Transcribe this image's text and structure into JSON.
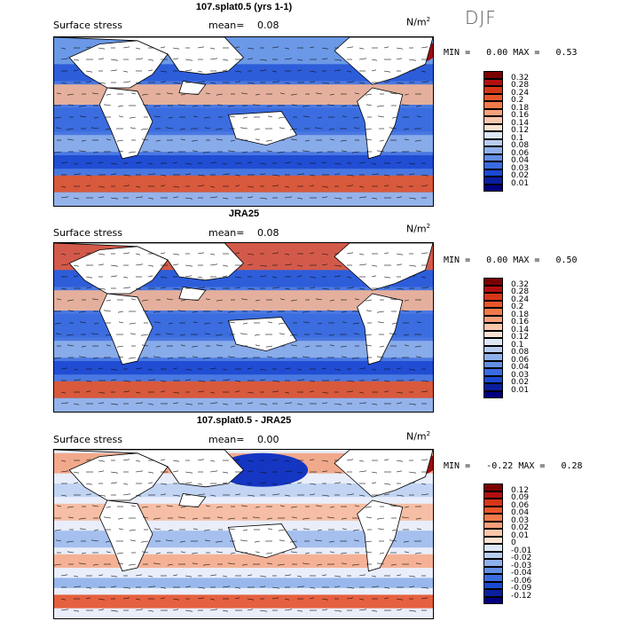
{
  "season": "DJF",
  "panels": [
    {
      "title": "107.splat0.5 (yrs 1-1)",
      "field": "Surface stress",
      "mean_label": "mean=",
      "mean": "0.08",
      "units": "N/m",
      "units_exp": "2",
      "min_label": "MIN =",
      "min": "0.00",
      "max_label": "MAX =",
      "max": "0.53",
      "colorbar": [
        "0.32",
        "0.28",
        "0.24",
        "0.2",
        "0.18",
        "0.16",
        "0.14",
        "0.12",
        "0.1",
        "0.08",
        "0.06",
        "0.04",
        "0.03",
        "0.02",
        "0.01"
      ]
    },
    {
      "title": "JRA25",
      "field": "Surface stress",
      "mean_label": "mean=",
      "mean": "0.08",
      "units": "N/m",
      "units_exp": "2",
      "min_label": "MIN =",
      "min": "0.00",
      "max_label": "MAX =",
      "max": "0.50",
      "colorbar": [
        "0.32",
        "0.28",
        "0.24",
        "0.2",
        "0.18",
        "0.16",
        "0.14",
        "0.12",
        "0.1",
        "0.08",
        "0.06",
        "0.04",
        "0.03",
        "0.02",
        "0.01"
      ]
    },
    {
      "title": "107.splat0.5 - JRA25",
      "field": "Surface stress",
      "mean_label": "mean=",
      "mean": "0.00",
      "units": "N/m",
      "units_exp": "2",
      "min_label": "MIN =",
      "min": "-0.22",
      "max_label": "MAX =",
      "max": "0.28",
      "colorbar": [
        "0.12",
        "0.09",
        "0.06",
        "0.04",
        "0.03",
        "0.02",
        "0.01",
        "0",
        "-0.01",
        "-0.02",
        "-0.03",
        "-0.04",
        "-0.06",
        "-0.09",
        "-0.12"
      ]
    }
  ],
  "colors": {
    "scale": [
      "#7a0000",
      "#b20f0f",
      "#d63618",
      "#e8552a",
      "#f07a4a",
      "#f6a07c",
      "#f9c7ac",
      "#fbe3d3",
      "#dde7f6",
      "#b8cdf0",
      "#8fb0ea",
      "#628ee4",
      "#3a6be0",
      "#1c48d2",
      "#0a1e9e",
      "#000080"
    ]
  }
}
